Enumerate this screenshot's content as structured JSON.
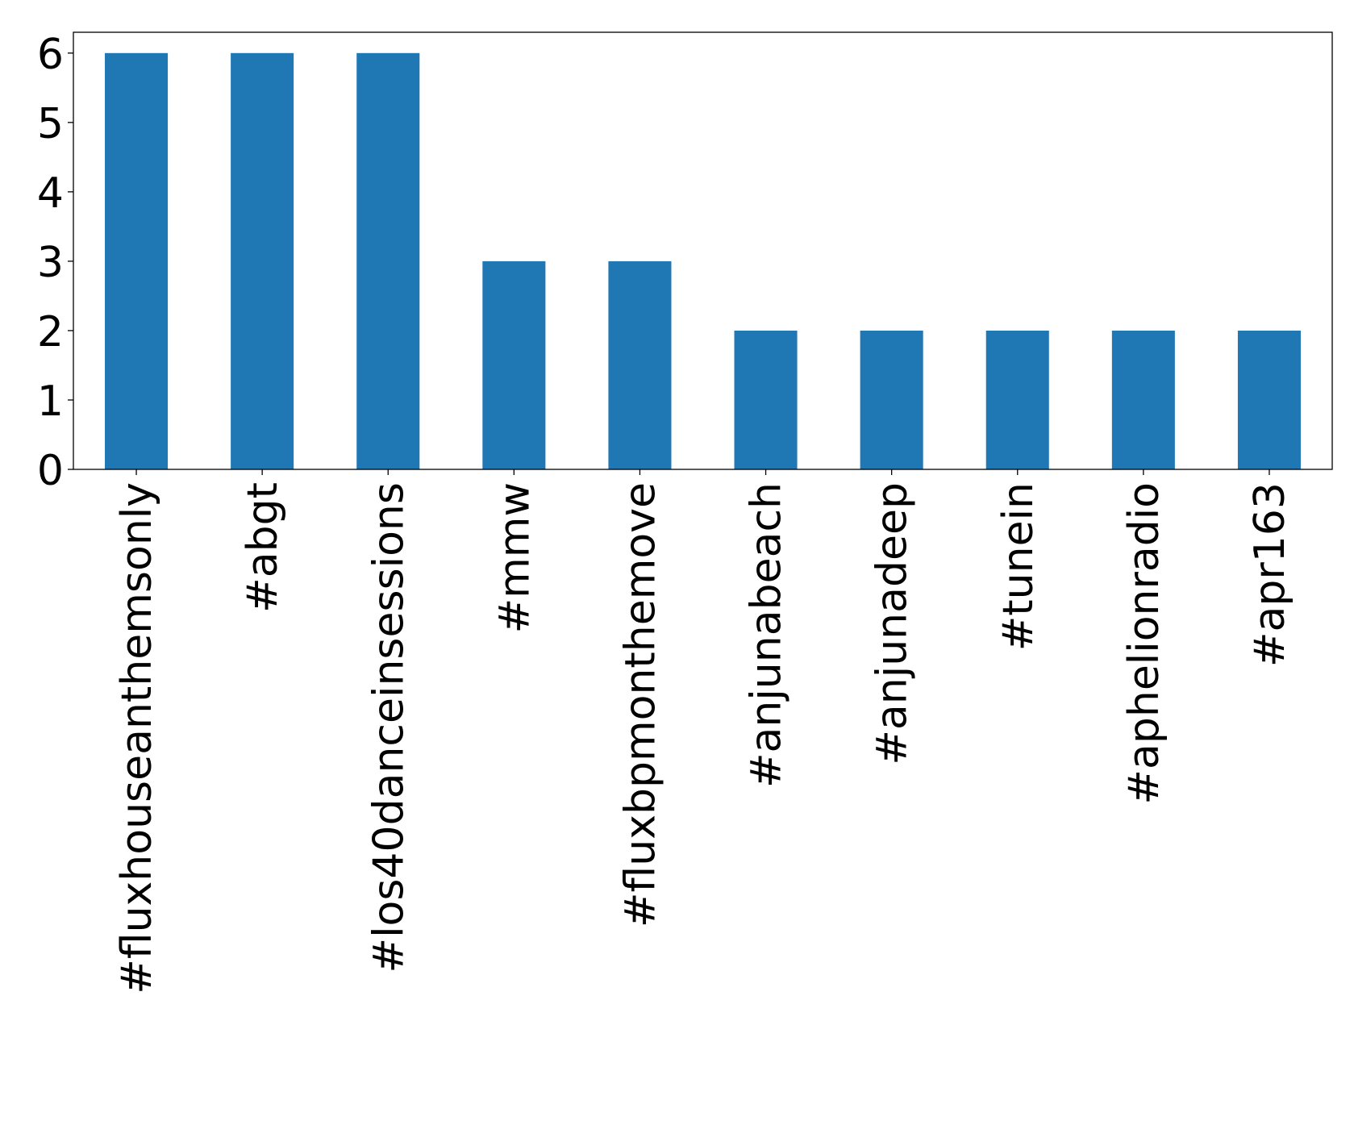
{
  "chart_data": {
    "type": "bar",
    "title": "",
    "xlabel": "",
    "ylabel": "",
    "categories": [
      "#fluxhouseanthemsonly",
      "#abgt",
      "#los40danceinsessions",
      "#mmw",
      "#fluxbpmonthemove",
      "#anjunabeach",
      "#anjunadeep",
      "#tunein",
      "#aphelionradio",
      "#apr163"
    ],
    "values": [
      6,
      6,
      6,
      3,
      3,
      2,
      2,
      2,
      2,
      2
    ],
    "yticks": [
      0,
      1,
      2,
      3,
      4,
      5,
      6
    ],
    "ylim": [
      0,
      6.3
    ],
    "grid": false,
    "legend": "none",
    "bar_color": "#1f77b4"
  }
}
